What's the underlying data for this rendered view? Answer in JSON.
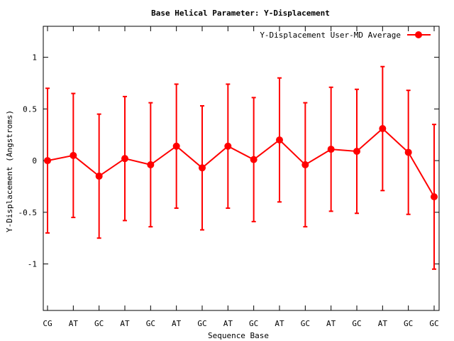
{
  "chart_data": {
    "type": "line",
    "title": "Base  Helical Parameter: Y-Displacement",
    "xlabel": "Sequence Base",
    "ylabel": "Y-Displacement (Angstroms)",
    "ylim": [
      -1.45,
      1.3
    ],
    "yticks": [
      -1,
      -0.5,
      0,
      0.5,
      1
    ],
    "ytick_labels": [
      "-1",
      "-0.5",
      "0",
      "0.5",
      "1"
    ],
    "categories": [
      "CG",
      "AT",
      "GC",
      "AT",
      "GC",
      "AT",
      "GC",
      "AT",
      "GC",
      "AT",
      "GC",
      "AT",
      "GC",
      "AT",
      "GC",
      "GC"
    ],
    "series": [
      {
        "name": "Y-Displacement User-MD Average",
        "color": "#ff0000",
        "values": [
          0.0,
          0.05,
          -0.15,
          0.02,
          -0.04,
          0.14,
          -0.07,
          0.14,
          0.01,
          0.2,
          -0.04,
          0.11,
          0.09,
          0.31,
          0.08,
          -0.35
        ],
        "errors": [
          0.7,
          0.6,
          0.6,
          0.6,
          0.6,
          0.6,
          0.6,
          0.6,
          0.6,
          0.6,
          0.6,
          0.6,
          0.6,
          0.6,
          0.6,
          0.7
        ]
      }
    ],
    "legend_position": "top-right",
    "grid": false
  }
}
